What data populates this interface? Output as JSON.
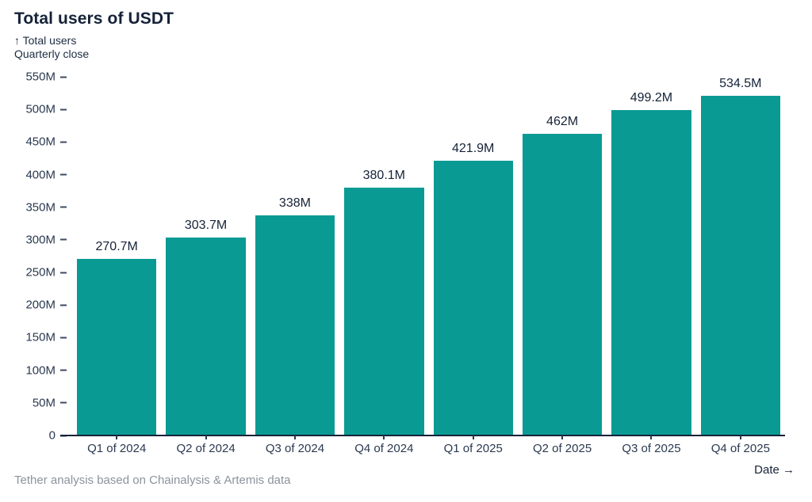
{
  "header": {
    "title": "Total users of USDT",
    "y_axis_annotation_line1": "↑ Total users",
    "y_axis_annotation_line2": "Quarterly close"
  },
  "footer": {
    "source": "Tether analysis based on Chainalysis & Artemis data",
    "x_axis_label": "Date →"
  },
  "colors": {
    "bar": "#0a9a94",
    "title_text": "#152238",
    "axis_text": "#2a3950",
    "source_text": "#8c939e"
  },
  "chart_data": {
    "type": "bar",
    "title": "Total users of USDT",
    "ylabel": "Total users, Quarterly close",
    "xlabel": "Date",
    "categories": [
      "Q1 of 2024",
      "Q2 of 2024",
      "Q3 of 2024",
      "Q4 of 2024",
      "Q1 of 2025",
      "Q2 of 2025",
      "Q3 of 2025",
      "Q4 of 2025"
    ],
    "values": [
      270.7,
      303.7,
      338,
      380.1,
      421.9,
      462,
      499.2,
      534.5
    ],
    "value_labels": [
      "270.7M",
      "303.7M",
      "338M",
      "380.1M",
      "421.9M",
      "462M",
      "499.2M",
      "534.5M"
    ],
    "unit": "M",
    "ylim": [
      0,
      550
    ],
    "yticks": [
      {
        "value": 550,
        "label": "550M"
      },
      {
        "value": 500,
        "label": "500M"
      },
      {
        "value": 450,
        "label": "450M"
      },
      {
        "value": 400,
        "label": "400M"
      },
      {
        "value": 350,
        "label": "350M"
      },
      {
        "value": 300,
        "label": "300M"
      },
      {
        "value": 250,
        "label": "250M"
      },
      {
        "value": 200,
        "label": "200M"
      },
      {
        "value": 150,
        "label": "150M"
      },
      {
        "value": 100,
        "label": "100M"
      },
      {
        "value": 50,
        "label": "50M"
      },
      {
        "value": 0,
        "label": "0"
      }
    ],
    "grid": false,
    "legend": "none",
    "source": "Tether analysis based on Chainalysis & Artemis data"
  }
}
